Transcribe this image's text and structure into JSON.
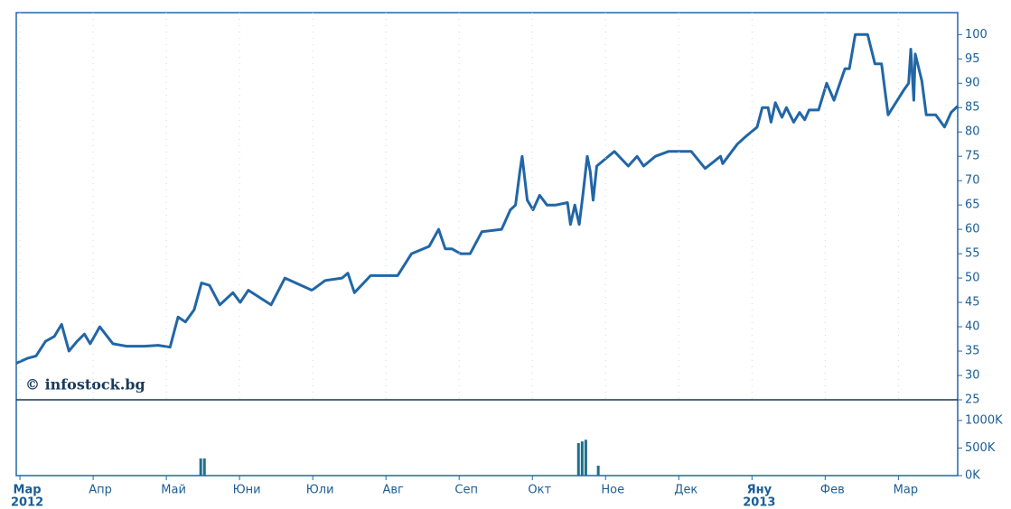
{
  "chart_data": [
    {
      "type": "line",
      "watermark": "© infostock.bg",
      "color": "#2166a6",
      "x": [
        -0.05,
        0.1,
        0.22,
        0.35,
        0.47,
        0.57,
        0.67,
        0.78,
        0.88,
        0.96,
        1.09,
        1.27,
        1.46,
        1.7,
        1.89,
        2.05,
        2.16,
        2.26,
        2.38,
        2.48,
        2.59,
        2.73,
        2.91,
        3.01,
        3.12,
        3.43,
        3.62,
        3.99,
        4.17,
        4.4,
        4.48,
        4.57,
        4.79,
        5.16,
        5.35,
        5.59,
        5.72,
        5.81,
        5.9,
        6.02,
        6.15,
        6.31,
        6.58,
        6.7,
        6.77,
        6.83,
        6.86,
        6.93,
        7.01,
        7.1,
        7.2,
        7.32,
        7.48,
        7.52,
        7.58,
        7.64,
        7.69,
        7.75,
        7.79,
        7.83,
        7.88,
        8.0,
        8.12,
        8.31,
        8.43,
        8.52,
        8.68,
        8.86,
        9.17,
        9.36,
        9.57,
        9.6,
        9.8,
        9.91,
        10.07,
        10.14,
        10.22,
        10.26,
        10.32,
        10.41,
        10.47,
        10.57,
        10.65,
        10.72,
        10.78,
        10.91,
        11.02,
        11.12,
        11.27,
        11.33,
        11.41,
        11.58,
        11.68,
        11.77,
        11.86,
        12.07,
        12.14,
        12.17,
        12.21,
        12.23,
        12.32,
        12.38,
        12.51,
        12.63,
        12.72,
        12.81
      ],
      "values": [
        32.5,
        33.5,
        34,
        37,
        38,
        40.5,
        35,
        37,
        38.5,
        36.5,
        40,
        36.5,
        36,
        36,
        36.2,
        35.8,
        42,
        41,
        43.5,
        49,
        48.5,
        44.5,
        47,
        45,
        47.5,
        44.5,
        50,
        47.5,
        49.5,
        50,
        51,
        47,
        50.5,
        50.5,
        55,
        56.5,
        60,
        56,
        56,
        55,
        55,
        59.5,
        60,
        64,
        65,
        72,
        75,
        66,
        64,
        67,
        65,
        65,
        65.5,
        61,
        65,
        61,
        67,
        75,
        72,
        66,
        73,
        74.5,
        76,
        73,
        75,
        73,
        75,
        76,
        76,
        72.5,
        75,
        73.5,
        77.5,
        79,
        81,
        85,
        85,
        82,
        86,
        83,
        85,
        82,
        84,
        82.5,
        84.5,
        84.5,
        90,
        86.5,
        93,
        93,
        100,
        100,
        94,
        94,
        83.5,
        88.5,
        90,
        97,
        86.5,
        96,
        90.5,
        83.5,
        83.5,
        81,
        84,
        85.3
      ],
      "xlim": [
        -0.05,
        12.81
      ],
      "xticks": [
        {
          "value": 0,
          "label": "Мар"
        },
        {
          "value": 1,
          "label": "Апр"
        },
        {
          "value": 2,
          "label": "Май"
        },
        {
          "value": 3,
          "label": "Юни"
        },
        {
          "value": 4,
          "label": "Юли"
        },
        {
          "value": 5,
          "label": "Авг"
        },
        {
          "value": 6,
          "label": "Сеп"
        },
        {
          "value": 7,
          "label": "Окт"
        },
        {
          "value": 8,
          "label": "Ное"
        },
        {
          "value": 9,
          "label": "Дек"
        },
        {
          "value": 10,
          "label": "Яну"
        },
        {
          "value": 11,
          "label": "Фев"
        },
        {
          "value": 12,
          "label": "Мар"
        }
      ],
      "year_labels": [
        {
          "value": 0,
          "label": "2012"
        },
        {
          "value": 10,
          "label": "2013"
        }
      ],
      "ylim": [
        25,
        104.5
      ],
      "yticks": [
        25,
        30,
        35,
        40,
        45,
        50,
        55,
        60,
        65,
        70,
        75,
        80,
        85,
        90,
        95,
        100
      ]
    },
    {
      "type": "bar",
      "color": "#1f6f8b",
      "x": [
        2.47,
        2.52,
        7.63,
        7.68,
        7.73,
        7.9
      ],
      "values": [
        310000,
        310000,
        590000,
        620000,
        650000,
        180000
      ],
      "ylim": [
        0,
        1375000
      ],
      "yticks": [
        {
          "value": 0,
          "label": "0K"
        },
        {
          "value": 500000,
          "label": "500K"
        },
        {
          "value": 1000000,
          "label": "1000K"
        }
      ]
    }
  ]
}
